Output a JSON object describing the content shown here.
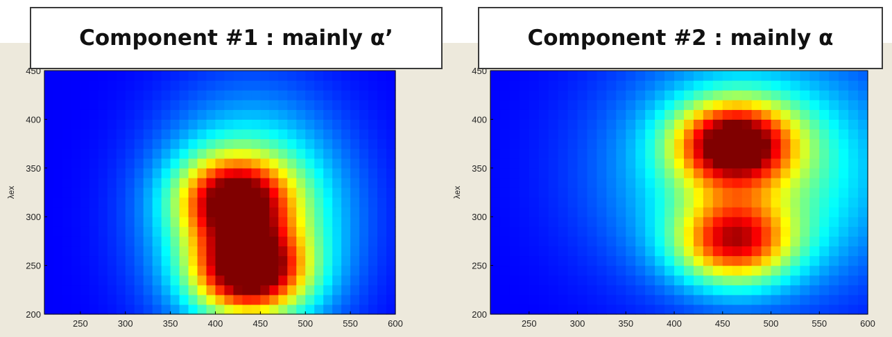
{
  "chart_data": [
    {
      "type": "heatmap",
      "title": "Component #1 : mainly α’",
      "xlabel": "",
      "ylabel": "λex",
      "xlim": [
        210,
        600
      ],
      "ylim": [
        200,
        450
      ],
      "xticks": [
        250,
        300,
        350,
        400,
        450,
        500,
        550,
        600
      ],
      "yticks": [
        200,
        250,
        300,
        350,
        400,
        450
      ],
      "colormap": "jet",
      "grid": false,
      "peaks": [
        {
          "x": 438,
          "y": 245,
          "intensity": 1.0
        },
        {
          "x": 420,
          "y": 318,
          "intensity": 0.82
        }
      ],
      "band": {
        "x_from": 360,
        "x_to": 520,
        "y_from": 210,
        "y_to": 385,
        "intensity": 0.45
      }
    },
    {
      "type": "heatmap",
      "title": "Component #2 : mainly α",
      "xlabel": "",
      "ylabel": "λex",
      "xlim": [
        210,
        600
      ],
      "ylim": [
        200,
        450
      ],
      "xticks": [
        250,
        300,
        350,
        400,
        450,
        500,
        550,
        600
      ],
      "yticks": [
        200,
        250,
        300,
        350,
        400,
        450
      ],
      "colormap": "jet",
      "grid": false,
      "peaks": [
        {
          "x": 462,
          "y": 375,
          "intensity": 1.0
        },
        {
          "x": 462,
          "y": 275,
          "intensity": 0.8
        }
      ],
      "band": {
        "x_from": 370,
        "x_to": 600,
        "y_from": 255,
        "y_to": 440,
        "intensity": 0.35
      }
    }
  ]
}
